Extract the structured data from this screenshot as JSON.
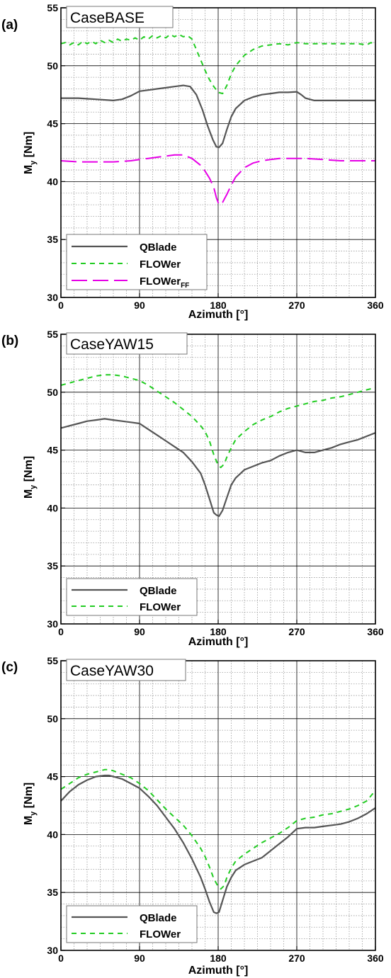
{
  "colors": {
    "qblade": "#555555",
    "flower": "#22cc22",
    "flower_ff": "#e600e6",
    "grid_major": "#000000",
    "grid_minor": "#9a9a9a"
  },
  "chart_data": [
    {
      "type": "line",
      "panel_label": "(a)",
      "case_label": "CaseBASE",
      "xlabel": "Azimuth [°]",
      "ylabel": "M",
      "ylabel_sub": "y",
      "ylabel_unit": "[Nm]",
      "xlim": [
        0,
        360
      ],
      "ylim": [
        30,
        55
      ],
      "xticks": [
        0,
        90,
        180,
        270,
        360
      ],
      "yticks": [
        30,
        35,
        40,
        45,
        50,
        55
      ],
      "grid": true,
      "legend_position": "bottom-left",
      "series": [
        {
          "name": "QBlade",
          "style": "solid",
          "x": [
            0,
            20,
            40,
            60,
            70,
            80,
            90,
            100,
            110,
            120,
            130,
            140,
            148,
            155,
            162,
            168,
            174,
            178,
            181,
            185,
            190,
            195,
            200,
            210,
            220,
            230,
            240,
            250,
            260,
            270,
            275,
            280,
            290,
            300,
            320,
            340,
            360
          ],
          "y": [
            47.2,
            47.2,
            47.1,
            47.0,
            47.1,
            47.4,
            47.8,
            47.9,
            48.0,
            48.1,
            48.2,
            48.3,
            48.2,
            47.5,
            46.2,
            44.8,
            43.6,
            43.0,
            42.95,
            43.3,
            44.5,
            45.6,
            46.3,
            47.0,
            47.3,
            47.5,
            47.6,
            47.7,
            47.7,
            47.75,
            47.5,
            47.2,
            47.0,
            47.0,
            47.0,
            47.0,
            47.0
          ]
        },
        {
          "name": "FLOWer",
          "style": "dash",
          "x": [
            0,
            5,
            10,
            15,
            20,
            25,
            30,
            35,
            40,
            45,
            50,
            55,
            60,
            65,
            70,
            75,
            80,
            85,
            90,
            95,
            100,
            105,
            110,
            115,
            120,
            125,
            130,
            135,
            140,
            145,
            150,
            160,
            165,
            170,
            175,
            180,
            185,
            190,
            195,
            200,
            210,
            220,
            230,
            240,
            250,
            260,
            270,
            280,
            290,
            300,
            310,
            320,
            330,
            340,
            350,
            355,
            360
          ],
          "y": [
            51.9,
            52.0,
            51.8,
            52.0,
            51.8,
            52.1,
            51.9,
            52.1,
            51.9,
            52.2,
            52.0,
            52.2,
            52.0,
            52.3,
            52.1,
            52.3,
            52.2,
            52.4,
            52.2,
            52.5,
            52.3,
            52.6,
            52.4,
            52.6,
            52.4,
            52.7,
            52.5,
            52.7,
            52.5,
            52.6,
            52.3,
            50.5,
            49.6,
            48.8,
            48.2,
            47.7,
            47.6,
            48.3,
            49.3,
            50.0,
            50.9,
            51.4,
            51.7,
            51.8,
            51.9,
            51.8,
            52.0,
            51.9,
            51.9,
            51.9,
            51.9,
            51.9,
            51.9,
            51.9,
            51.8,
            52.0,
            51.8
          ]
        },
        {
          "name": "FLOWer",
          "name_sub": "FF",
          "style": "longdash",
          "x": [
            0,
            20,
            40,
            60,
            80,
            90,
            100,
            110,
            120,
            130,
            140,
            150,
            160,
            165,
            170,
            175,
            178,
            181,
            185,
            190,
            195,
            200,
            210,
            220,
            230,
            240,
            250,
            260,
            270,
            280,
            300,
            320,
            340,
            360
          ],
          "y": [
            41.8,
            41.7,
            41.7,
            41.7,
            41.8,
            41.9,
            42.0,
            42.1,
            42.2,
            42.3,
            42.3,
            42.0,
            41.4,
            40.9,
            40.3,
            39.5,
            38.6,
            38.0,
            38.2,
            38.9,
            39.7,
            40.4,
            41.2,
            41.6,
            41.8,
            41.9,
            42.0,
            42.0,
            42.0,
            42.0,
            41.9,
            41.8,
            41.8,
            41.8
          ]
        }
      ]
    },
    {
      "type": "line",
      "panel_label": "(b)",
      "case_label": "CaseYAW15",
      "xlabel": "Azimuth [°]",
      "ylabel": "M",
      "ylabel_sub": "y",
      "ylabel_unit": "[Nm]",
      "xlim": [
        0,
        360
      ],
      "ylim": [
        30,
        55
      ],
      "xticks": [
        0,
        90,
        180,
        270,
        360
      ],
      "yticks": [
        30,
        35,
        40,
        45,
        50,
        55
      ],
      "grid": true,
      "legend_position": "bottom-left",
      "series": [
        {
          "name": "QBlade",
          "style": "solid",
          "x": [
            0,
            10,
            20,
            30,
            40,
            50,
            60,
            70,
            80,
            90,
            100,
            110,
            120,
            130,
            140,
            150,
            160,
            165,
            170,
            175,
            178,
            181,
            185,
            190,
            195,
            200,
            210,
            220,
            230,
            240,
            250,
            260,
            270,
            280,
            290,
            300,
            310,
            320,
            330,
            340,
            350,
            360
          ],
          "y": [
            46.9,
            47.1,
            47.3,
            47.5,
            47.6,
            47.7,
            47.6,
            47.5,
            47.4,
            47.3,
            46.8,
            46.3,
            45.8,
            45.3,
            44.8,
            44.0,
            43.0,
            42.0,
            40.8,
            39.6,
            39.4,
            39.3,
            39.8,
            40.9,
            42.0,
            42.6,
            43.3,
            43.6,
            43.9,
            44.1,
            44.5,
            44.8,
            45.0,
            44.8,
            44.8,
            45.0,
            45.2,
            45.5,
            45.7,
            45.9,
            46.2,
            46.5
          ]
        },
        {
          "name": "FLOWer",
          "style": "dash",
          "x": [
            0,
            10,
            20,
            30,
            40,
            50,
            60,
            70,
            80,
            90,
            100,
            110,
            120,
            130,
            140,
            150,
            160,
            165,
            170,
            175,
            180,
            183,
            187,
            190,
            195,
            200,
            210,
            220,
            230,
            240,
            250,
            260,
            270,
            280,
            290,
            300,
            310,
            320,
            330,
            340,
            350,
            360
          ],
          "y": [
            50.6,
            50.8,
            51.0,
            51.2,
            51.4,
            51.5,
            51.5,
            51.4,
            51.2,
            51.0,
            50.6,
            50.1,
            49.6,
            49.1,
            48.5,
            47.9,
            47.1,
            46.6,
            45.8,
            44.6,
            43.7,
            43.5,
            43.8,
            44.4,
            45.2,
            45.9,
            46.6,
            47.2,
            47.6,
            47.9,
            48.3,
            48.6,
            48.8,
            49.0,
            49.2,
            49.3,
            49.5,
            49.6,
            49.8,
            50.0,
            50.2,
            50.4
          ]
        }
      ]
    },
    {
      "type": "line",
      "panel_label": "(c)",
      "case_label": "CaseYAW30",
      "xlabel": "Azimuth [°]",
      "ylabel": "M",
      "ylabel_sub": "y",
      "ylabel_unit": "[Nm]",
      "xlim": [
        0,
        360
      ],
      "ylim": [
        30,
        55
      ],
      "xticks": [
        0,
        90,
        180,
        270,
        360
      ],
      "yticks": [
        30,
        35,
        40,
        45,
        50,
        55
      ],
      "grid": true,
      "legend_position": "bottom-left",
      "series": [
        {
          "name": "QBlade",
          "style": "solid",
          "x": [
            0,
            10,
            20,
            30,
            40,
            50,
            55,
            60,
            70,
            80,
            90,
            100,
            110,
            120,
            130,
            140,
            150,
            160,
            165,
            170,
            175,
            178,
            181,
            185,
            190,
            195,
            200,
            210,
            220,
            230,
            240,
            250,
            260,
            270,
            280,
            290,
            300,
            310,
            320,
            330,
            340,
            350,
            360
          ],
          "y": [
            42.9,
            43.7,
            44.3,
            44.7,
            45.0,
            45.1,
            45.1,
            45.0,
            44.8,
            44.4,
            44.0,
            43.3,
            42.5,
            41.5,
            40.5,
            39.3,
            37.9,
            36.3,
            35.3,
            34.2,
            33.3,
            33.2,
            33.3,
            34.3,
            35.5,
            36.3,
            36.9,
            37.4,
            37.7,
            38.0,
            38.6,
            39.2,
            39.8,
            40.5,
            40.6,
            40.6,
            40.7,
            40.8,
            40.9,
            41.1,
            41.4,
            41.8,
            42.3
          ]
        },
        {
          "name": "FLOWer",
          "style": "dash",
          "x": [
            0,
            10,
            20,
            30,
            40,
            50,
            55,
            60,
            70,
            80,
            90,
            100,
            110,
            120,
            130,
            140,
            150,
            160,
            165,
            170,
            175,
            180,
            183,
            187,
            190,
            195,
            200,
            210,
            220,
            230,
            240,
            250,
            260,
            270,
            280,
            290,
            300,
            310,
            320,
            330,
            340,
            350,
            360
          ],
          "y": [
            43.9,
            44.4,
            44.9,
            45.2,
            45.4,
            45.6,
            45.6,
            45.5,
            45.2,
            44.9,
            44.4,
            43.8,
            43.0,
            42.2,
            41.5,
            40.8,
            39.9,
            38.8,
            38.1,
            37.2,
            36.2,
            35.5,
            35.3,
            35.6,
            36.3,
            37.1,
            37.7,
            38.3,
            38.8,
            39.3,
            39.7,
            40.1,
            40.6,
            41.2,
            41.4,
            41.5,
            41.7,
            41.8,
            42.0,
            42.2,
            42.5,
            42.9,
            43.8
          ]
        }
      ]
    }
  ]
}
